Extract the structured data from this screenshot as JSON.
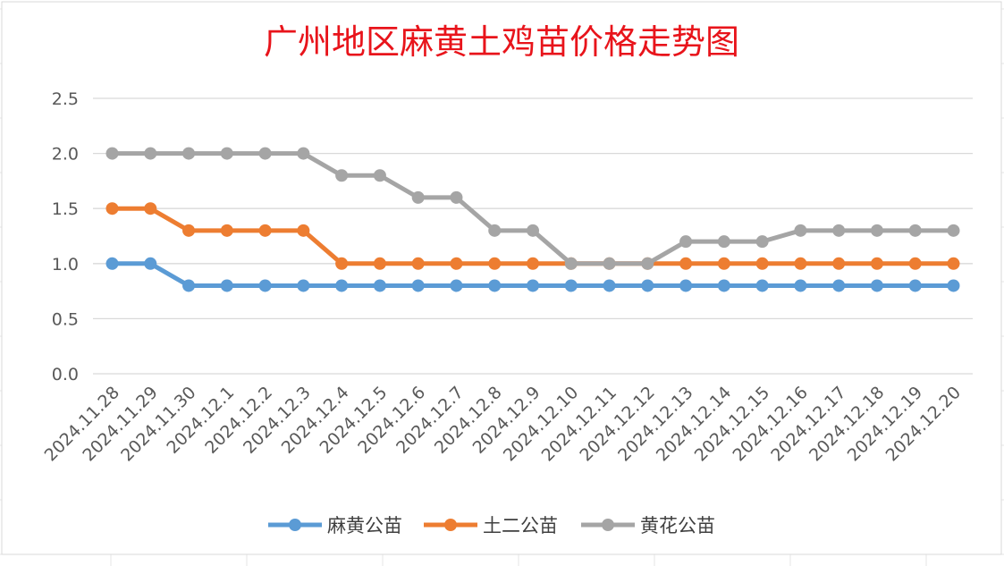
{
  "chart_data": {
    "type": "line",
    "title": "广州地区麻黄土鸡苗价格走势图",
    "xlabel": "",
    "ylabel": "",
    "ylim": [
      0,
      2.5
    ],
    "yticks": [
      "0.0",
      "0.5",
      "1.0",
      "1.5",
      "2.0",
      "2.5"
    ],
    "grid": true,
    "legend_position": "bottom",
    "categories": [
      "2024.11.28",
      "2024.11.29",
      "2024.11.30",
      "2024.12.1",
      "2024.12.2",
      "2024.12.3",
      "2024.12.4",
      "2024.12.5",
      "2024.12.6",
      "2024.12.7",
      "2024.12.8",
      "2024.12.9",
      "2024.12.10",
      "2024.12.11",
      "2024.12.12",
      "2024.12.13",
      "2024.12.14",
      "2024.12.15",
      "2024.12.16",
      "2024.12.17",
      "2024.12.18",
      "2024.12.19",
      "2024.12.20"
    ],
    "series": [
      {
        "name": "麻黄公苗",
        "color": "#5b9bd5",
        "values": [
          1.0,
          1.0,
          0.8,
          0.8,
          0.8,
          0.8,
          0.8,
          0.8,
          0.8,
          0.8,
          0.8,
          0.8,
          0.8,
          0.8,
          0.8,
          0.8,
          0.8,
          0.8,
          0.8,
          0.8,
          0.8,
          0.8,
          0.8
        ]
      },
      {
        "name": "土二公苗",
        "color": "#ed7d31",
        "values": [
          1.5,
          1.5,
          1.3,
          1.3,
          1.3,
          1.3,
          1.0,
          1.0,
          1.0,
          1.0,
          1.0,
          1.0,
          1.0,
          1.0,
          1.0,
          1.0,
          1.0,
          1.0,
          1.0,
          1.0,
          1.0,
          1.0,
          1.0
        ]
      },
      {
        "name": "黄花公苗",
        "color": "#a5a5a5",
        "values": [
          2.0,
          2.0,
          2.0,
          2.0,
          2.0,
          2.0,
          1.8,
          1.8,
          1.6,
          1.6,
          1.3,
          1.3,
          1.0,
          1.0,
          1.0,
          1.2,
          1.2,
          1.2,
          1.3,
          1.3,
          1.3,
          1.3,
          1.3
        ]
      }
    ]
  }
}
